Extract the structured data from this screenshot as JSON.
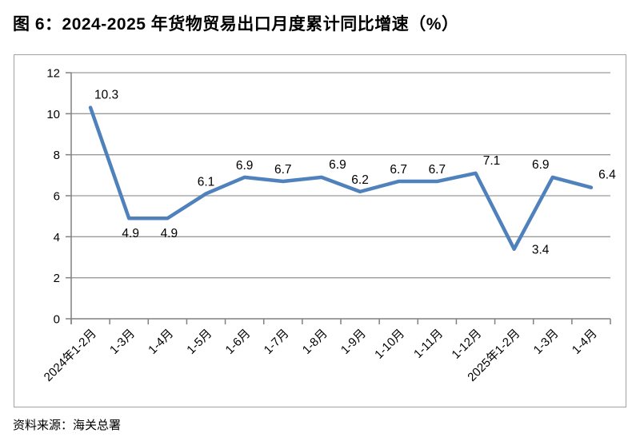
{
  "page": {
    "title": "图 6：2024-2025 年货物贸易出口月度累计同比增速（%）",
    "source": "资料来源：海关总署"
  },
  "chart_data": {
    "type": "line",
    "title": "图 6：2024-2025 年货物贸易出口月度累计同比增速（%）",
    "categories": [
      "2024年1-2月",
      "1-3月",
      "1-4月",
      "1-5月",
      "1-6月",
      "1-7月",
      "1-8月",
      "1-9月",
      "1-10月",
      "1-11月",
      "1-12月",
      "2025年1-2月",
      "1-3月",
      "1-4月"
    ],
    "values": [
      10.3,
      4.9,
      4.9,
      6.1,
      6.9,
      6.7,
      6.9,
      6.2,
      6.7,
      6.7,
      7.1,
      3.4,
      6.9,
      6.4
    ],
    "xlabel": "",
    "ylabel": "",
    "ylim": [
      0,
      12
    ],
    "ytick_step": 2,
    "yticks": [
      0,
      2,
      4,
      6,
      8,
      10,
      12
    ],
    "grid": true,
    "legend": false,
    "data_labels": true,
    "label_positions": [
      "above-right",
      "below",
      "below",
      "above",
      "above",
      "above",
      "above-right",
      "above",
      "above",
      "above",
      "above-right",
      "right",
      "above-left",
      "above-right"
    ],
    "colors": {
      "line": "#4f81bd",
      "gridline": "#9a9a9a",
      "axis": "#808080",
      "text": "#000000",
      "border": "#a3a3a3"
    },
    "source": "资料来源：海关总署"
  }
}
